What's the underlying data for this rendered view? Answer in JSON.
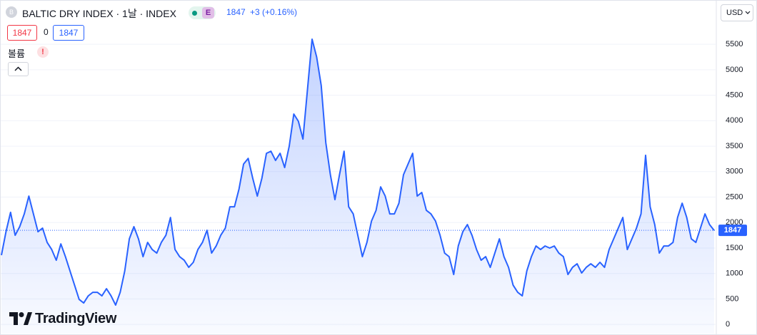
{
  "chart_data": {
    "type": "area",
    "title": "BALTIC DRY INDEX · 1날 · INDEX",
    "symbol_badge": "B",
    "exchange_badge": "E",
    "last_price": 1847,
    "change": "+3 (+0.16%)",
    "sell": 1847,
    "spread": 0,
    "buy": 1847,
    "volume_label": "볼륨",
    "volume_warning": "!",
    "currency": "USD",
    "brand": "TradingView",
    "color": "#2962ff",
    "grid": true,
    "ylim": [
      -180,
      6370
    ],
    "yticks": [
      0,
      500,
      1000,
      1500,
      2000,
      2500,
      3000,
      3500,
      4000,
      4500,
      5000,
      5500
    ],
    "values": [
      1360,
      1820,
      2200,
      1750,
      1920,
      2170,
      2520,
      2170,
      1820,
      1890,
      1610,
      1470,
      1260,
      1580,
      1330,
      1050,
      770,
      490,
      420,
      560,
      630,
      630,
      560,
      700,
      560,
      380,
      630,
      1050,
      1680,
      1920,
      1680,
      1330,
      1610,
      1470,
      1400,
      1610,
      1750,
      2100,
      1470,
      1330,
      1260,
      1120,
      1220,
      1470,
      1610,
      1850,
      1400,
      1540,
      1750,
      1890,
      2310,
      2310,
      2660,
      3150,
      3260,
      2870,
      2520,
      2870,
      3360,
      3400,
      3220,
      3360,
      3080,
      3500,
      4130,
      3990,
      3640,
      4620,
      5600,
      5250,
      4690,
      3570,
      2940,
      2450,
      2940,
      3400,
      2310,
      2170,
      1750,
      1330,
      1610,
      2030,
      2240,
      2700,
      2520,
      2170,
      2170,
      2380,
      2940,
      3150,
      3360,
      2520,
      2590,
      2240,
      2170,
      2030,
      1750,
      1400,
      1330,
      980,
      1540,
      1820,
      1960,
      1750,
      1470,
      1260,
      1330,
      1120,
      1400,
      1680,
      1330,
      1120,
      770,
      630,
      560,
      1050,
      1330,
      1540,
      1470,
      1540,
      1500,
      1540,
      1400,
      1330,
      980,
      1120,
      1190,
      1010,
      1120,
      1190,
      1120,
      1220,
      1120,
      1470,
      1680,
      1890,
      2100,
      1470,
      1680,
      1890,
      2170,
      3320,
      2310,
      1960,
      1400,
      1540,
      1540,
      1610,
      2100,
      2380,
      2100,
      1680,
      1610,
      1890,
      2170,
      1960,
      1847
    ]
  }
}
